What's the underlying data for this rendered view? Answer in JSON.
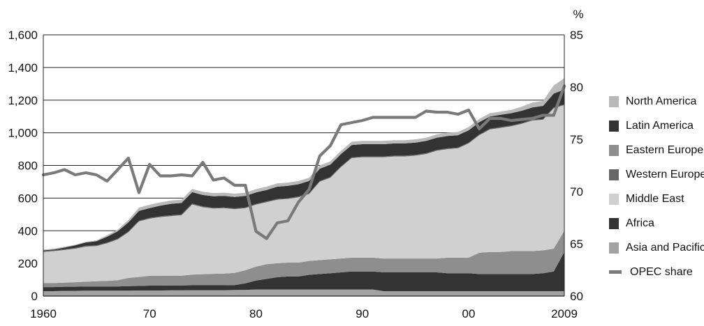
{
  "chart_data": {
    "type": "area",
    "left_axis": {
      "ticks": [
        "0",
        "200",
        "400",
        "600",
        "800",
        "1,000",
        "1,200",
        "1,400",
        "1,600"
      ],
      "ylim": [
        0,
        1600
      ]
    },
    "right_axis": {
      "unit": "%",
      "ticks": [
        "60",
        "65",
        "70",
        "75",
        "80",
        "85"
      ],
      "ylim": [
        60,
        85
      ]
    },
    "x_ticks": [
      {
        "year": 1960,
        "label": "1960"
      },
      {
        "year": 1970,
        "label": "70"
      },
      {
        "year": 1980,
        "label": "80"
      },
      {
        "year": 1990,
        "label": "90"
      },
      {
        "year": 2000,
        "label": "00"
      },
      {
        "year": 2009,
        "label": "2009"
      }
    ],
    "xlim": [
      1960,
      2009
    ],
    "grid": true,
    "legend_position": "right",
    "x": [
      1960,
      1961,
      1962,
      1963,
      1964,
      1965,
      1966,
      1967,
      1968,
      1969,
      1970,
      1971,
      1972,
      1973,
      1974,
      1975,
      1976,
      1977,
      1978,
      1979,
      1980,
      1981,
      1982,
      1983,
      1984,
      1985,
      1986,
      1987,
      1988,
      1989,
      1990,
      1991,
      1992,
      1993,
      1994,
      1995,
      1996,
      1997,
      1998,
      1999,
      2000,
      2001,
      2002,
      2003,
      2004,
      2005,
      2006,
      2007,
      2008,
      2009
    ],
    "series": [
      {
        "name": "Asia and Pacific",
        "color": "#a2a2a2",
        "values": [
          30,
          30,
          32,
          32,
          33,
          33,
          33,
          33,
          33,
          34,
          34,
          34,
          35,
          35,
          36,
          36,
          36,
          36,
          37,
          38,
          40,
          40,
          40,
          40,
          40,
          40,
          40,
          40,
          40,
          40,
          40,
          40,
          30,
          30,
          30,
          30,
          30,
          30,
          30,
          30,
          30,
          30,
          30,
          30,
          30,
          30,
          30,
          30,
          30,
          30
        ]
      },
      {
        "name": "Africa",
        "color": "#333333",
        "values": [
          25,
          25,
          25,
          25,
          25,
          25,
          25,
          26,
          28,
          28,
          30,
          30,
          30,
          30,
          30,
          30,
          30,
          30,
          30,
          40,
          55,
          65,
          75,
          80,
          80,
          90,
          95,
          100,
          105,
          110,
          110,
          110,
          115,
          115,
          115,
          115,
          115,
          115,
          110,
          110,
          110,
          105,
          105,
          105,
          105,
          105,
          105,
          110,
          120,
          240
        ]
      },
      {
        "name": "Eastern Europe",
        "color": "#8e8e8e",
        "values": [
          25,
          25,
          25,
          28,
          30,
          33,
          35,
          38,
          50,
          55,
          60,
          60,
          60,
          60,
          65,
          68,
          70,
          72,
          75,
          80,
          85,
          90,
          85,
          85,
          85,
          85,
          85,
          85,
          85,
          85,
          85,
          85,
          85,
          85,
          85,
          85,
          85,
          85,
          95,
          95,
          95,
          130,
          135,
          135,
          140,
          140,
          140,
          140,
          140,
          130
        ]
      },
      {
        "name": "Middle East",
        "color": "#d0d0d0",
        "values": [
          190,
          195,
          200,
          205,
          215,
          215,
          230,
          250,
          280,
          340,
          350,
          360,
          365,
          370,
          430,
          410,
          400,
          400,
          390,
          380,
          380,
          380,
          390,
          390,
          400,
          410,
          480,
          500,
          560,
          610,
          615,
          615,
          620,
          625,
          625,
          630,
          640,
          660,
          665,
          670,
          700,
          720,
          750,
          760,
          765,
          780,
          800,
          800,
          860,
          770
        ]
      },
      {
        "name": "Western Europe",
        "color": "#666666",
        "values": [
          5,
          5,
          5,
          5,
          5,
          5,
          5,
          5,
          5,
          5,
          5,
          5,
          5,
          5,
          5,
          5,
          5,
          5,
          5,
          5,
          5,
          5,
          5,
          5,
          5,
          5,
          5,
          5,
          5,
          5,
          5,
          5,
          5,
          5,
          5,
          5,
          5,
          5,
          5,
          5,
          5,
          5,
          5,
          5,
          5,
          5,
          5,
          5,
          5,
          5
        ]
      },
      {
        "name": "Eastern Europe",
        "color": "#8e8e8e",
        "values": [
          0,
          0,
          0,
          0,
          0,
          0,
          0,
          0,
          0,
          0,
          0,
          0,
          0,
          0,
          0,
          0,
          0,
          0,
          0,
          0,
          0,
          0,
          0,
          0,
          0,
          0,
          0,
          0,
          0,
          0,
          0,
          0,
          0,
          0,
          0,
          0,
          0,
          0,
          0,
          0,
          0,
          0,
          0,
          0,
          0,
          0,
          0,
          0,
          0,
          0
        ]
      },
      {
        "name": "Latin America",
        "color": "#333333",
        "values": [
          5,
          5,
          10,
          15,
          20,
          25,
          35,
          45,
          55,
          60,
          60,
          65,
          70,
          70,
          70,
          70,
          70,
          70,
          70,
          70,
          70,
          70,
          75,
          75,
          75,
          75,
          75,
          75,
          75,
          75,
          75,
          75,
          75,
          75,
          75,
          75,
          75,
          75,
          75,
          75,
          75,
          75,
          75,
          75,
          75,
          75,
          75,
          80,
          85,
          90
        ]
      },
      {
        "name": "North America",
        "color": "#b9b9b9",
        "values": [
          5,
          5,
          5,
          5,
          5,
          5,
          10,
          10,
          15,
          20,
          20,
          20,
          20,
          20,
          20,
          20,
          20,
          20,
          20,
          20,
          20,
          20,
          20,
          20,
          20,
          20,
          20,
          20,
          20,
          20,
          20,
          20,
          20,
          20,
          20,
          20,
          20,
          20,
          20,
          20,
          20,
          20,
          20,
          20,
          20,
          25,
          30,
          30,
          50,
          70
        ]
      }
    ],
    "line_series": {
      "name": "OPEC share",
      "color": "#7a7a7a",
      "axis": "right",
      "values": [
        71.6,
        71.8,
        72.1,
        71.6,
        71.8,
        71.6,
        71.0,
        72.1,
        73.2,
        69.9,
        72.6,
        71.5,
        71.5,
        71.6,
        71.5,
        72.8,
        71.1,
        71.3,
        70.6,
        70.6,
        66.2,
        65.5,
        67.0,
        67.2,
        69.0,
        70.2,
        73.4,
        74.4,
        76.4,
        76.6,
        76.8,
        77.1,
        77.1,
        77.1,
        77.1,
        77.1,
        77.7,
        77.6,
        77.6,
        77.4,
        77.8,
        76.0,
        77.0,
        77.0,
        76.8,
        76.9,
        77.0,
        77.3,
        77.3,
        80.1
      ]
    },
    "legend": [
      {
        "label": "North America",
        "color": "#b9b9b9",
        "kind": "box"
      },
      {
        "label": "Latin America",
        "color": "#333333",
        "kind": "box"
      },
      {
        "label": "Eastern Europe",
        "color": "#8e8e8e",
        "kind": "box"
      },
      {
        "label": "Western Europe",
        "color": "#666666",
        "kind": "box"
      },
      {
        "label": "Middle East",
        "color": "#d0d0d0",
        "kind": "box"
      },
      {
        "label": "Africa",
        "color": "#333333",
        "kind": "box"
      },
      {
        "label": "Asia and Pacific",
        "color": "#a2a2a2",
        "kind": "box"
      },
      {
        "label": "OPEC share",
        "color": "#7a7a7a",
        "kind": "line"
      }
    ]
  }
}
